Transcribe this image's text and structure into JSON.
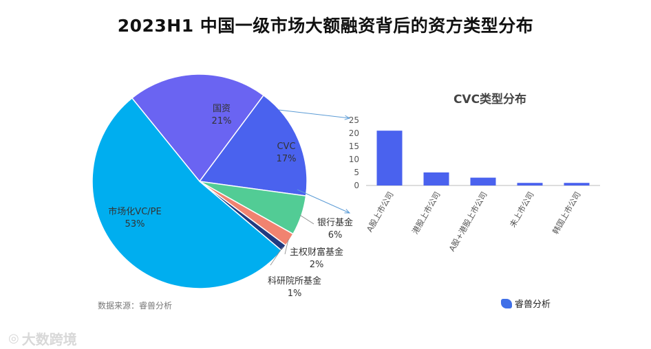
{
  "title": "2023H1 中国一级市场大额融资背后的资方类型分布",
  "source": "数据来源：睿兽分析",
  "logo_text": "睿兽分析",
  "watermark": "大数跨境",
  "colors": {
    "vcpe": "#00aeef",
    "guozi": "#6a64f2",
    "cvc": "#4a62ee",
    "bank": "#52cc95",
    "sovereign": "#f18370",
    "research": "#213a80",
    "bar": "#4a62ee",
    "arrow": "#5b9bd5"
  },
  "chart_data": [
    {
      "type": "pie",
      "slices": [
        {
          "label": "国资",
          "value": 21,
          "pct_label": "21%"
        },
        {
          "label": "CVC",
          "value": 17,
          "pct_label": "17%"
        },
        {
          "label": "银行基金",
          "value": 6,
          "pct_label": "6%"
        },
        {
          "label": "主权财富基金",
          "value": 2,
          "pct_label": "2%"
        },
        {
          "label": "科研院所基金",
          "value": 1,
          "pct_label": "1%"
        },
        {
          "label": "市场化VC/PE",
          "value": 53,
          "pct_label": "53%"
        }
      ]
    },
    {
      "type": "bar",
      "title": "CVC类型分布",
      "categories": [
        "A股上市公司",
        "港股上市公司",
        "A股+港股上市公司",
        "未上市公司",
        "韩国上市公司"
      ],
      "values": [
        21,
        5,
        3,
        1,
        1
      ],
      "ylim": [
        0,
        25
      ],
      "yticks": [
        0,
        5,
        10,
        15,
        20,
        25
      ],
      "grid": false
    }
  ]
}
